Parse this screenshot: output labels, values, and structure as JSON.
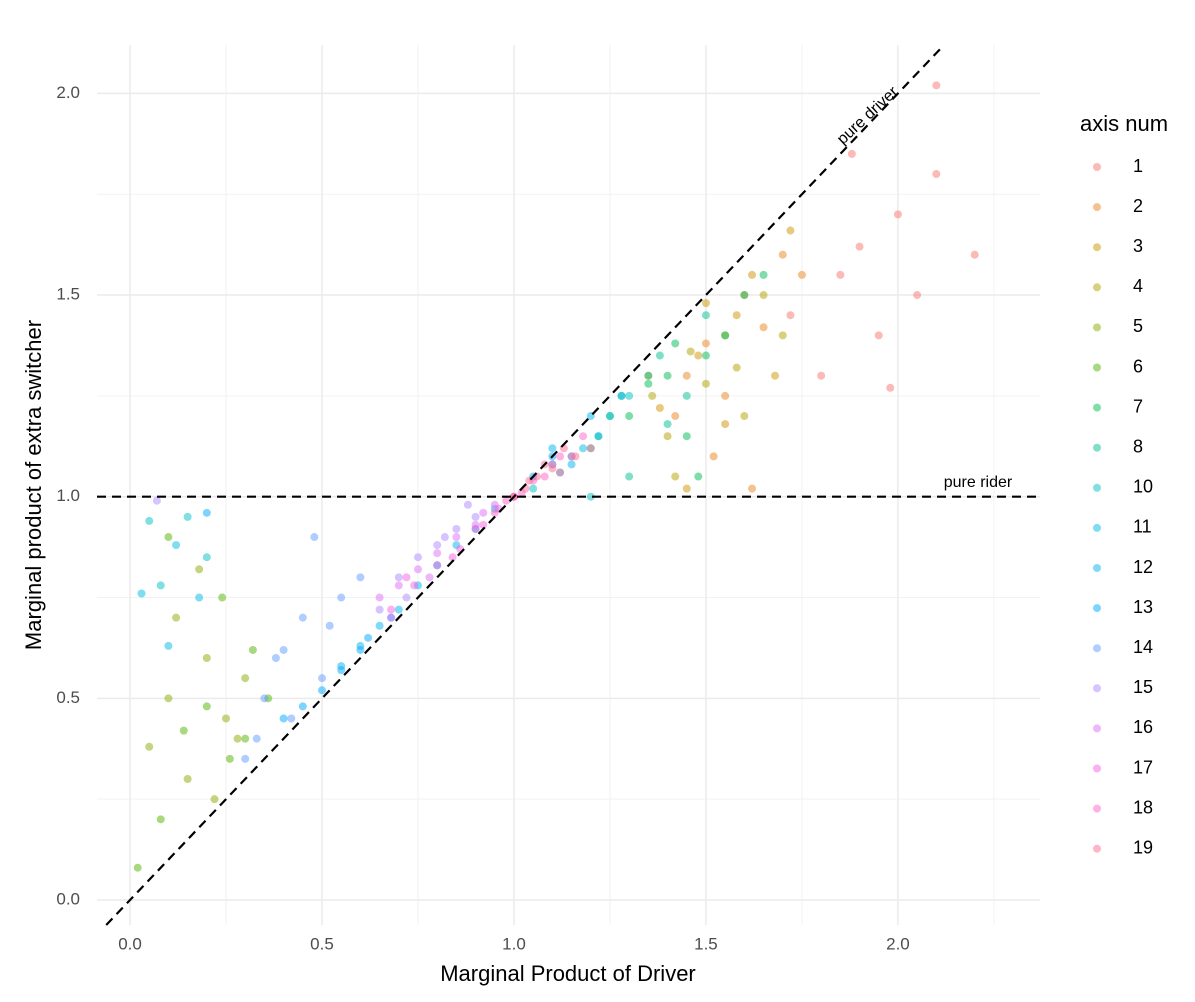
{
  "chart_data": {
    "type": "scatter",
    "x_label": "Marginal Product of Driver",
    "y_label": "Marginal product of extra switcher",
    "legend_title": "axis num",
    "legend_position": "right",
    "grid": true,
    "point_opacity": 0.5,
    "xlim": [
      -0.086,
      2.37
    ],
    "ylim": [
      -0.062,
      2.12
    ],
    "xticks": [
      {
        "value": 0,
        "label": "0.0"
      },
      0.5,
      {
        "value": 1,
        "label": "1.0"
      },
      1.5,
      {
        "value": 2,
        "label": "2.0"
      }
    ],
    "yticks": [
      {
        "value": 0,
        "label": "0.0"
      },
      0.5,
      {
        "value": 1,
        "label": "1.0"
      },
      1.5,
      {
        "value": 2,
        "label": "2.0"
      }
    ],
    "x_minor_ticks": [
      0.25,
      0.75,
      1.25,
      1.75,
      2.25
    ],
    "y_minor_ticks": [
      0.25,
      0.75,
      1.25,
      1.75
    ],
    "reference_lines": [
      {
        "label": "pure driver",
        "slope": 1,
        "intercept": 0
      },
      {
        "label": "pure rider",
        "slope": 0,
        "intercept": 1
      }
    ],
    "series": [
      {
        "name": "1",
        "color": "#F8766D",
        "x": [
          1.72,
          1.8,
          1.85,
          1.9,
          1.95,
          2.0,
          2.05,
          2.1,
          1.88,
          2.2,
          1.98,
          2.1
        ],
        "y": [
          1.45,
          1.3,
          1.55,
          1.62,
          1.4,
          1.7,
          1.5,
          1.8,
          1.85,
          1.6,
          1.27,
          2.02
        ]
      },
      {
        "name": "2",
        "color": "#E7851E",
        "x": [
          1.45,
          1.5,
          1.55,
          1.6,
          1.65,
          1.7,
          1.75,
          1.52,
          1.42,
          1.62
        ],
        "y": [
          1.3,
          1.38,
          1.25,
          1.5,
          1.42,
          1.6,
          1.55,
          1.1,
          1.2,
          1.02
        ]
      },
      {
        "name": "3",
        "color": "#D09400",
        "x": [
          1.38,
          1.48,
          1.58,
          1.68,
          1.55,
          1.45,
          1.62,
          1.72,
          1.35,
          1.5
        ],
        "y": [
          1.22,
          1.35,
          1.45,
          1.3,
          1.18,
          1.02,
          1.55,
          1.66,
          1.3,
          1.48
        ]
      },
      {
        "name": "4",
        "color": "#B2A100",
        "x": [
          1.4,
          1.5,
          1.6,
          1.55,
          1.46,
          1.65,
          1.42,
          1.58,
          1.36,
          1.7
        ],
        "y": [
          1.15,
          1.28,
          1.2,
          1.4,
          1.36,
          1.5,
          1.05,
          1.32,
          1.25,
          1.4
        ]
      },
      {
        "name": "5",
        "color": "#8AAB00",
        "x": [
          0.05,
          0.1,
          0.15,
          0.2,
          0.25,
          0.3,
          0.12,
          0.22,
          0.28,
          0.18
        ],
        "y": [
          0.38,
          0.5,
          0.3,
          0.6,
          0.45,
          0.55,
          0.7,
          0.25,
          0.4,
          0.82
        ]
      },
      {
        "name": "6",
        "color": "#53B400",
        "x": [
          0.02,
          0.08,
          0.14,
          0.2,
          0.26,
          0.32,
          0.36,
          0.1,
          0.24,
          0.3
        ],
        "y": [
          0.08,
          0.2,
          0.42,
          0.48,
          0.35,
          0.62,
          0.5,
          0.9,
          0.75,
          0.4
        ]
      },
      {
        "name": "7",
        "color": "#00BC56",
        "x": [
          1.3,
          1.4,
          1.45,
          1.5,
          1.55,
          1.6,
          1.35,
          1.48,
          1.42,
          1.65
        ],
        "y": [
          1.2,
          1.3,
          1.15,
          1.35,
          1.4,
          1.5,
          1.28,
          1.05,
          1.38,
          1.55
        ]
      },
      {
        "name": "8",
        "color": "#00C094",
        "x": [
          1.2,
          1.25,
          1.3,
          1.35,
          1.4,
          1.28,
          1.22,
          1.38,
          1.45,
          1.5
        ],
        "y": [
          1.12,
          1.2,
          1.05,
          1.3,
          1.18,
          1.25,
          1.15,
          1.35,
          1.25,
          1.45
        ]
      },
      {
        "name": "10",
        "color": "#00BFC4",
        "x": [
          0.05,
          0.08,
          0.15,
          0.2,
          1.05,
          1.1,
          1.15,
          1.25,
          1.3,
          1.2
        ],
        "y": [
          0.94,
          0.78,
          0.95,
          0.85,
          1.02,
          1.08,
          1.1,
          1.2,
          1.25,
          1.0
        ]
      },
      {
        "name": "11",
        "color": "#00B9E3",
        "x": [
          0.03,
          0.12,
          0.18,
          0.1,
          1.12,
          1.18,
          1.22,
          1.28,
          0.9,
          0.95
        ],
        "y": [
          0.76,
          0.88,
          0.75,
          0.63,
          1.06,
          1.12,
          1.15,
          1.25,
          0.92,
          0.97
        ]
      },
      {
        "name": "12",
        "color": "#00B4EF",
        "x": [
          0.55,
          0.6,
          0.65,
          0.7,
          0.75,
          0.8,
          1.1,
          1.2,
          1.15,
          0.85
        ],
        "y": [
          0.58,
          0.63,
          0.68,
          0.72,
          0.78,
          0.83,
          1.12,
          1.2,
          1.08,
          0.88
        ]
      },
      {
        "name": "13",
        "color": "#00A9FF",
        "x": [
          0.45,
          0.5,
          0.55,
          0.6,
          1.05,
          1.1,
          0.2,
          0.62,
          0.68,
          0.4
        ],
        "y": [
          0.48,
          0.52,
          0.57,
          0.62,
          1.05,
          1.1,
          0.96,
          0.65,
          0.7,
          0.45
        ]
      },
      {
        "name": "14",
        "color": "#619CFF",
        "x": [
          0.3,
          0.35,
          0.4,
          0.45,
          0.5,
          0.55,
          0.6,
          0.42,
          0.48,
          0.38,
          0.52,
          0.33
        ],
        "y": [
          0.35,
          0.5,
          0.62,
          0.7,
          0.55,
          0.75,
          0.8,
          0.45,
          0.9,
          0.6,
          0.68,
          0.4
        ]
      },
      {
        "name": "15",
        "color": "#AE87FF",
        "x": [
          0.7,
          0.75,
          0.8,
          0.85,
          0.9,
          0.72,
          0.82,
          0.88,
          0.07,
          0.65
        ],
        "y": [
          0.8,
          0.85,
          0.88,
          0.92,
          0.95,
          0.75,
          0.9,
          0.98,
          0.99,
          0.72
        ]
      },
      {
        "name": "16",
        "color": "#DF70F8",
        "x": [
          0.65,
          0.7,
          0.75,
          0.8,
          0.85,
          0.9,
          0.68,
          0.78,
          0.92,
          0.95
        ],
        "y": [
          0.75,
          0.78,
          0.82,
          0.86,
          0.9,
          0.93,
          0.7,
          0.8,
          0.96,
          0.98
        ]
      },
      {
        "name": "17",
        "color": "#F763E0",
        "x": [
          0.68,
          0.74,
          0.8,
          0.86,
          0.92,
          0.96,
          1.0,
          0.72,
          0.84,
          0.9
        ],
        "y": [
          0.72,
          0.78,
          0.83,
          0.87,
          0.93,
          0.97,
          1.0,
          0.8,
          0.85,
          0.92
        ]
      },
      {
        "name": "18",
        "color": "#FF61C9",
        "x": [
          0.95,
          1.0,
          1.05,
          1.1,
          1.15,
          1.02,
          1.08,
          1.12,
          0.98,
          1.18
        ],
        "y": [
          0.96,
          1.0,
          1.04,
          1.08,
          1.1,
          1.01,
          1.05,
          1.1,
          0.99,
          1.15
        ]
      },
      {
        "name": "19",
        "color": "#FF6C91",
        "x": [
          1.0,
          1.03,
          1.06,
          1.1,
          1.13,
          1.16,
          1.04,
          1.08,
          1.12,
          1.2
        ],
        "y": [
          1.0,
          1.02,
          1.05,
          1.07,
          1.12,
          1.1,
          1.04,
          1.08,
          1.06,
          1.12
        ]
      }
    ]
  }
}
